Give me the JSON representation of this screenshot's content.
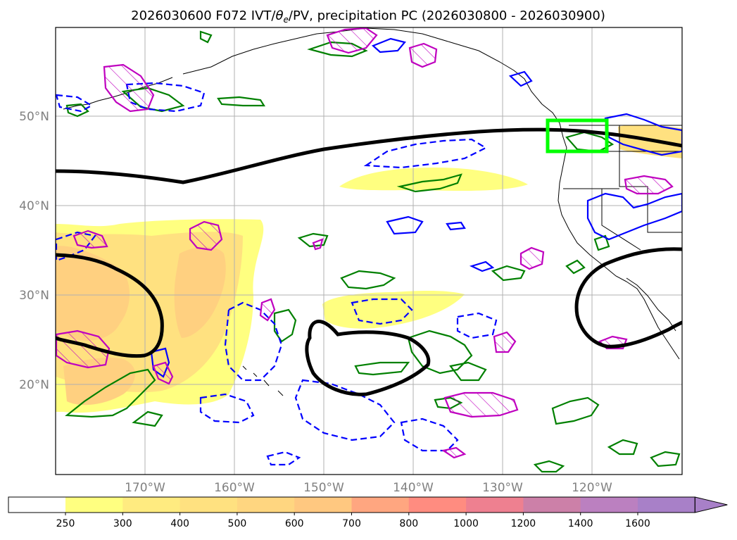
{
  "chart_data": {
    "type": "map",
    "title": "2026030600 F072 IVT/θe/PV, precipitation PC (2026030800 - 2026030900)",
    "title_parts": {
      "prefix": "2026030600 F072 IVT/",
      "theta": "θ",
      "sub": "e",
      "suffix": "/PV, precipitation PC (2026030800 - 2026030900)"
    },
    "lon_range": [
      -180,
      -110
    ],
    "lat_range": [
      10,
      60
    ],
    "lat_ticks": [
      {
        "value": 20,
        "label": "20°N"
      },
      {
        "value": 30,
        "label": "30°N"
      },
      {
        "value": 40,
        "label": "40°N"
      },
      {
        "value": 50,
        "label": "50°N"
      }
    ],
    "lon_ticks": [
      {
        "value": -170,
        "label": "170°W"
      },
      {
        "value": -160,
        "label": "160°W"
      },
      {
        "value": -150,
        "label": "150°W"
      },
      {
        "value": -140,
        "label": "140°W"
      },
      {
        "value": -130,
        "label": "130°W"
      },
      {
        "value": -120,
        "label": "120°W"
      }
    ],
    "grid": true,
    "highlight_box": {
      "lon": [
        -125,
        -118.2
      ],
      "lat": [
        46,
        49.6
      ],
      "color": "#00ff00"
    },
    "colorbar": {
      "levels": [
        250,
        300,
        400,
        500,
        600,
        700,
        800,
        1000,
        1200,
        1400,
        1600
      ],
      "labels": [
        "250",
        "300",
        "400",
        "500",
        "600",
        "700",
        "800",
        "1000",
        "1200",
        "1400",
        "1600"
      ],
      "colors": [
        "#ffffff",
        "#ffff80",
        "#ffeb80",
        "#ffe180",
        "#ffd680",
        "#ffc880",
        "#ffa680",
        "#ff8c80",
        "#ee8090",
        "#cc80a8",
        "#bb80c0",
        "#a880c8"
      ],
      "extend": "max"
    },
    "colors": {
      "ivt_fill_1": "#ffff80",
      "ivt_fill_2": "#ffe180",
      "ivt_fill_3": "#ffd080",
      "theta_contour": "#000000",
      "pv_contour": "#0000ff",
      "precip_contour": "#008000",
      "pc_contour": "#bf00bf"
    }
  }
}
